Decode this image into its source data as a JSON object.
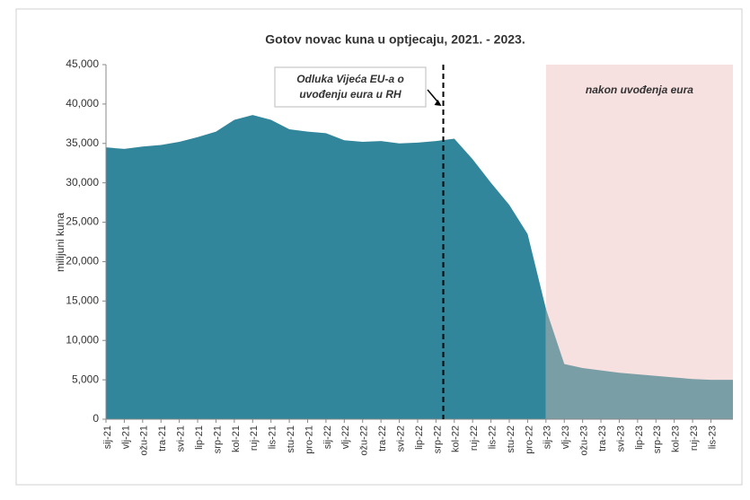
{
  "chart_data": {
    "type": "area",
    "title": "Gotov novac kuna u optjecaju, 2021. - 2023.",
    "y_label": "milijuni kuna",
    "categories": [
      "sij-21",
      "vlj-21",
      "ožu-21",
      "tra-21",
      "svi-21",
      "lip-21",
      "srp-21",
      "kol-21",
      "ruj-21",
      "lis-21",
      "stu-21",
      "pro-21",
      "sij-22",
      "vlj-22",
      "ožu-22",
      "tra-22",
      "svi-22",
      "lip-22",
      "srp-22",
      "kol-22",
      "ruj-22",
      "lis-22",
      "stu-22",
      "pro-22",
      "sij-23",
      "vlj-23",
      "ožu-23",
      "tra-23",
      "svi-23",
      "lip-23",
      "srp-23",
      "kol-23",
      "ruj-23",
      "lis-23"
    ],
    "series": [
      {
        "color": "#31869b",
        "values": [
          34500,
          34300,
          34600,
          34800,
          35200,
          35800,
          36500,
          38000,
          38600,
          38000,
          36800,
          36500,
          36300,
          35400,
          35200,
          35300,
          35000,
          35100,
          35300,
          35600,
          33000,
          30000,
          27200,
          23500,
          14000,
          null,
          null,
          null,
          null,
          null,
          null,
          null,
          null,
          null
        ]
      },
      {
        "color": "#7a9ea6",
        "values": [
          null,
          null,
          null,
          null,
          null,
          null,
          null,
          null,
          null,
          null,
          null,
          null,
          null,
          null,
          null,
          null,
          null,
          null,
          null,
          null,
          null,
          null,
          null,
          null,
          14000,
          7000,
          6500,
          6200,
          5900,
          5700,
          5500,
          5300,
          5100,
          5000
        ]
      }
    ],
    "ylim": [
      0,
      45000
    ],
    "yticks": [
      0,
      {
        "value": 5000,
        "label": "5,000"
      },
      {
        "value": 10000,
        "label": "10,000"
      },
      {
        "value": 15000,
        "label": "15,000"
      },
      {
        "value": 20000,
        "label": "20,000"
      },
      {
        "value": 25000,
        "label": "25,000"
      },
      {
        "value": 30000,
        "label": "30,000"
      },
      {
        "value": 35000,
        "label": "35,000"
      },
      {
        "value": 40000,
        "label": "40,000"
      },
      {
        "value": 45000,
        "label": "45,000"
      }
    ],
    "annotations": {
      "decision": [
        "Odluka Vijeća EU-a o",
        "uvođenju eura u RH"
      ],
      "region": "nakon uvođenja eura",
      "region_from": "sij-23"
    }
  }
}
